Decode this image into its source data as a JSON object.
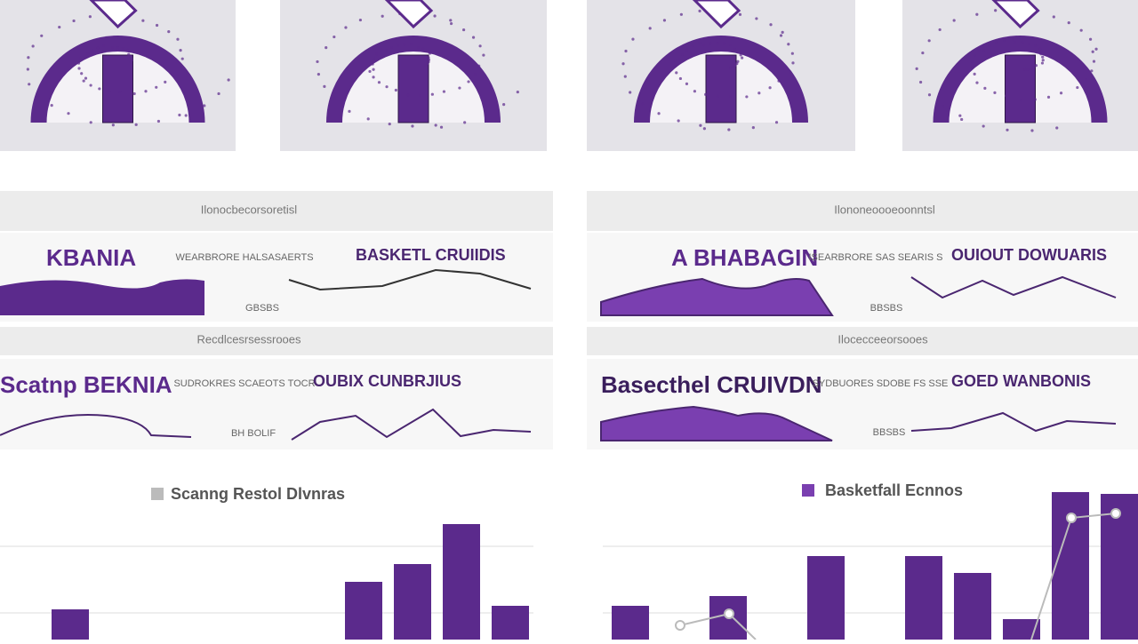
{
  "panels": [
    {
      "header1": "Ilonocbecorsoretisl",
      "row1": {
        "title": "KBANIA",
        "side": "WEARBRORE HALSASAERTS",
        "chart_title": "BASKETL CRUIIDIS",
        "foot": "GBSBS"
      },
      "header2": "Recdlcesrsessrooes",
      "row2": {
        "title": "Scatnp BEKNIA",
        "side": "SUDROKRES SCAEOTS TOCR",
        "chart_title": "OUBIX CUNBRJIUS",
        "foot": "BH BOLIF"
      }
    },
    {
      "header1": "Ilononeoooeoonntsl",
      "row1": {
        "title": "A BHABAGIN",
        "side": "ISEARBRORE SAS SEARIS S",
        "chart_title": "OUIOUT DOWUARIS",
        "foot": "BBSBS"
      },
      "header2": "Ilocecceeorsooes",
      "row2": {
        "title": "Basecthel CRUIVDN",
        "side": "SYDBUORES SDOBE FS SSE",
        "chart_title": "GOED WANBONIS",
        "foot": "BBSBS"
      }
    }
  ],
  "bottom_charts": [
    {
      "legend": "Scanng Restol Dlvnras",
      "color": "#5b2a8c",
      "values": [
        34,
        65,
        85,
        130,
        38
      ]
    },
    {
      "legend": "Basketfall Ecnnos",
      "color": "#5b2a8c",
      "values": [
        38,
        49,
        94,
        94,
        75,
        23,
        166,
        164
      ]
    }
  ]
}
